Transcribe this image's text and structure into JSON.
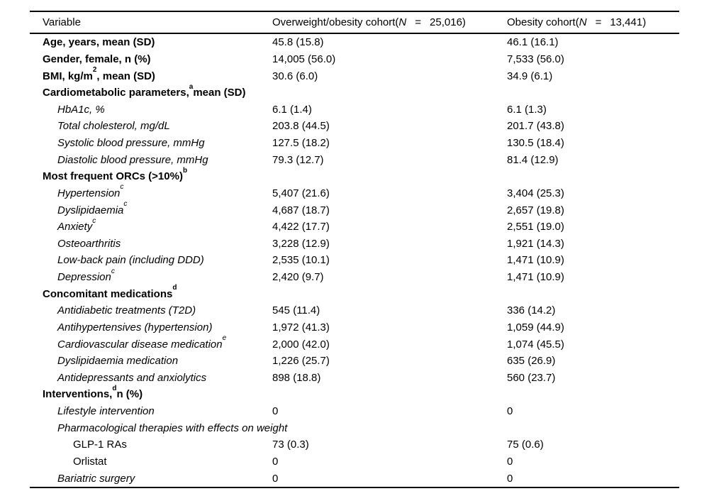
{
  "colors": {
    "text": "#000000",
    "rule": "#000000",
    "background": "#ffffff"
  },
  "table": {
    "header": {
      "variable": "Variable",
      "col2": {
        "pre": "Overweight/obesity cohort(",
        "n": "N",
        "eq": "=",
        "count": "25,016)"
      },
      "col3": {
        "pre": "Obesity cohort(",
        "n": "N",
        "eq": "=",
        "count": "13,441)"
      }
    },
    "rows": [
      {
        "pre": "Age, years, mean (SD)",
        "sup": "",
        "post": "",
        "v1": "45.8 (15.8)",
        "v2": "46.1 (16.1)",
        "style": "bold",
        "indent": 0
      },
      {
        "pre": "Gender, female, n (%)",
        "sup": "",
        "post": "",
        "v1": "14,005 (56.0)",
        "v2": "7,533 (56.0)",
        "style": "bold",
        "indent": 0
      },
      {
        "pre": "BMI, kg/m",
        "sup": "2",
        "post": ", mean (SD)",
        "v1": "30.6 (6.0)",
        "v2": "34.9 (6.1)",
        "style": "bold",
        "indent": 0
      },
      {
        "pre": "Cardiometabolic parameters,",
        "sup": "a",
        "post": "mean (SD)",
        "v1": "",
        "v2": "",
        "style": "bold",
        "indent": 0
      },
      {
        "pre": "HbA1c, %",
        "sup": "",
        "post": "",
        "v1": "6.1 (1.4)",
        "v2": "6.1 (1.3)",
        "style": "italic",
        "indent": 1
      },
      {
        "pre": "Total cholesterol, mg/dL",
        "sup": "",
        "post": "",
        "v1": "203.8 (44.5)",
        "v2": "201.7 (43.8)",
        "style": "italic",
        "indent": 1
      },
      {
        "pre": "Systolic blood pressure, mmHg",
        "sup": "",
        "post": "",
        "v1": "127.5 (18.2)",
        "v2": "130.5 (18.4)",
        "style": "italic",
        "indent": 1
      },
      {
        "pre": "Diastolic blood pressure, mmHg",
        "sup": "",
        "post": "",
        "v1": "79.3 (12.7)",
        "v2": "81.4 (12.9)",
        "style": "italic",
        "indent": 1
      },
      {
        "pre": "Most frequent ORCs (>10%)",
        "sup": "b",
        "post": "",
        "v1": "",
        "v2": "",
        "style": "bold",
        "indent": 0
      },
      {
        "pre": "Hypertension",
        "sup": "c",
        "post": "",
        "v1": "5,407 (21.6)",
        "v2": "3,404 (25.3)",
        "style": "italic",
        "indent": 1
      },
      {
        "pre": "Dyslipidaemia",
        "sup": "c",
        "post": "",
        "v1": "4,687 (18.7)",
        "v2": "2,657 (19.8)",
        "style": "italic",
        "indent": 1
      },
      {
        "pre": "Anxiety",
        "sup": "c",
        "post": "",
        "v1": "4,422 (17.7)",
        "v2": "2,551 (19.0)",
        "style": "italic",
        "indent": 1
      },
      {
        "pre": "Osteoarthritis",
        "sup": "",
        "post": "",
        "v1": "3,228 (12.9)",
        "v2": "1,921 (14.3)",
        "style": "italic",
        "indent": 1
      },
      {
        "pre": "Low-back pain (including DDD)",
        "sup": "",
        "post": "",
        "v1": "2,535 (10.1)",
        "v2": "1,471 (10.9)",
        "style": "italic",
        "indent": 1
      },
      {
        "pre": "Depression",
        "sup": "c",
        "post": "",
        "v1": "2,420 (9.7)",
        "v2": "1,471 (10.9)",
        "style": "italic",
        "indent": 1
      },
      {
        "pre": "Concomitant medications",
        "sup": "d",
        "post": "",
        "v1": "",
        "v2": "",
        "style": "bold",
        "indent": 0
      },
      {
        "pre": "Antidiabetic treatments (T2D)",
        "sup": "",
        "post": "",
        "v1": "545 (11.4)",
        "v2": "336 (14.2)",
        "style": "italic",
        "indent": 1
      },
      {
        "pre": "Antihypertensives (hypertension)",
        "sup": "",
        "post": "",
        "v1": "1,972 (41.3)",
        "v2": "1,059 (44.9)",
        "style": "italic",
        "indent": 1
      },
      {
        "pre": "Cardiovascular disease medication",
        "sup": "e",
        "post": "",
        "v1": "2,000 (42.0)",
        "v2": "1,074 (45.5)",
        "style": "italic",
        "indent": 1
      },
      {
        "pre": "Dyslipidaemia medication",
        "sup": "",
        "post": "",
        "v1": "1,226 (25.7)",
        "v2": "635 (26.9)",
        "style": "italic",
        "indent": 1
      },
      {
        "pre": "Antidepressants and anxiolytics",
        "sup": "",
        "post": "",
        "v1": "898 (18.8)",
        "v2": "560 (23.7)",
        "style": "italic",
        "indent": 1
      },
      {
        "pre": "Interventions,",
        "sup": "d",
        "post": "n (%)",
        "v1": "",
        "v2": "",
        "style": "bold",
        "indent": 0
      },
      {
        "pre": "Lifestyle intervention",
        "sup": "",
        "post": "",
        "v1": "0",
        "v2": "0",
        "style": "italic",
        "indent": 1
      },
      {
        "pre": "Pharmacological therapies with effects on weight",
        "sup": "",
        "post": "",
        "v1": "",
        "v2": "",
        "style": "italic",
        "indent": 1
      },
      {
        "pre": "GLP-1 RAs",
        "sup": "",
        "post": "",
        "v1": "73 (0.3)",
        "v2": "75 (0.6)",
        "style": "plain",
        "indent": 2
      },
      {
        "pre": "Orlistat",
        "sup": "",
        "post": "",
        "v1": "0",
        "v2": "0",
        "style": "plain",
        "indent": 2
      },
      {
        "pre": "Bariatric surgery",
        "sup": "",
        "post": "",
        "v1": "0",
        "v2": "0",
        "style": "italic",
        "indent": 1
      }
    ]
  }
}
